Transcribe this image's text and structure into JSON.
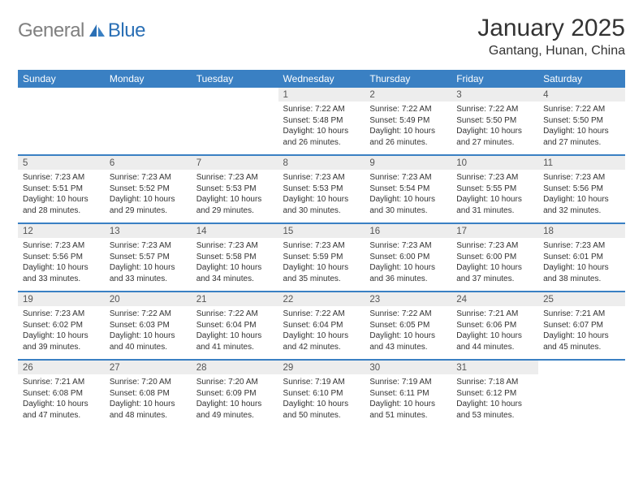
{
  "logo": {
    "text_left": "General",
    "text_right": "Blue"
  },
  "title": "January 2025",
  "location": "Gantang, Hunan, China",
  "colors": {
    "header_bg": "#3a80c3",
    "header_text": "#ffffff",
    "daynum_bg": "#ededed",
    "separator": "#3a80c3",
    "logo_gray": "#808080",
    "logo_blue": "#2a6fb5",
    "body_text": "#333333"
  },
  "day_headers": [
    "Sunday",
    "Monday",
    "Tuesday",
    "Wednesday",
    "Thursday",
    "Friday",
    "Saturday"
  ],
  "weeks": [
    [
      {
        "day": "",
        "lines": []
      },
      {
        "day": "",
        "lines": []
      },
      {
        "day": "",
        "lines": []
      },
      {
        "day": "1",
        "lines": [
          "Sunrise: 7:22 AM",
          "Sunset: 5:48 PM",
          "Daylight: 10 hours and 26 minutes."
        ]
      },
      {
        "day": "2",
        "lines": [
          "Sunrise: 7:22 AM",
          "Sunset: 5:49 PM",
          "Daylight: 10 hours and 26 minutes."
        ]
      },
      {
        "day": "3",
        "lines": [
          "Sunrise: 7:22 AM",
          "Sunset: 5:50 PM",
          "Daylight: 10 hours and 27 minutes."
        ]
      },
      {
        "day": "4",
        "lines": [
          "Sunrise: 7:22 AM",
          "Sunset: 5:50 PM",
          "Daylight: 10 hours and 27 minutes."
        ]
      }
    ],
    [
      {
        "day": "5",
        "lines": [
          "Sunrise: 7:23 AM",
          "Sunset: 5:51 PM",
          "Daylight: 10 hours and 28 minutes."
        ]
      },
      {
        "day": "6",
        "lines": [
          "Sunrise: 7:23 AM",
          "Sunset: 5:52 PM",
          "Daylight: 10 hours and 29 minutes."
        ]
      },
      {
        "day": "7",
        "lines": [
          "Sunrise: 7:23 AM",
          "Sunset: 5:53 PM",
          "Daylight: 10 hours and 29 minutes."
        ]
      },
      {
        "day": "8",
        "lines": [
          "Sunrise: 7:23 AM",
          "Sunset: 5:53 PM",
          "Daylight: 10 hours and 30 minutes."
        ]
      },
      {
        "day": "9",
        "lines": [
          "Sunrise: 7:23 AM",
          "Sunset: 5:54 PM",
          "Daylight: 10 hours and 30 minutes."
        ]
      },
      {
        "day": "10",
        "lines": [
          "Sunrise: 7:23 AM",
          "Sunset: 5:55 PM",
          "Daylight: 10 hours and 31 minutes."
        ]
      },
      {
        "day": "11",
        "lines": [
          "Sunrise: 7:23 AM",
          "Sunset: 5:56 PM",
          "Daylight: 10 hours and 32 minutes."
        ]
      }
    ],
    [
      {
        "day": "12",
        "lines": [
          "Sunrise: 7:23 AM",
          "Sunset: 5:56 PM",
          "Daylight: 10 hours and 33 minutes."
        ]
      },
      {
        "day": "13",
        "lines": [
          "Sunrise: 7:23 AM",
          "Sunset: 5:57 PM",
          "Daylight: 10 hours and 33 minutes."
        ]
      },
      {
        "day": "14",
        "lines": [
          "Sunrise: 7:23 AM",
          "Sunset: 5:58 PM",
          "Daylight: 10 hours and 34 minutes."
        ]
      },
      {
        "day": "15",
        "lines": [
          "Sunrise: 7:23 AM",
          "Sunset: 5:59 PM",
          "Daylight: 10 hours and 35 minutes."
        ]
      },
      {
        "day": "16",
        "lines": [
          "Sunrise: 7:23 AM",
          "Sunset: 6:00 PM",
          "Daylight: 10 hours and 36 minutes."
        ]
      },
      {
        "day": "17",
        "lines": [
          "Sunrise: 7:23 AM",
          "Sunset: 6:00 PM",
          "Daylight: 10 hours and 37 minutes."
        ]
      },
      {
        "day": "18",
        "lines": [
          "Sunrise: 7:23 AM",
          "Sunset: 6:01 PM",
          "Daylight: 10 hours and 38 minutes."
        ]
      }
    ],
    [
      {
        "day": "19",
        "lines": [
          "Sunrise: 7:23 AM",
          "Sunset: 6:02 PM",
          "Daylight: 10 hours and 39 minutes."
        ]
      },
      {
        "day": "20",
        "lines": [
          "Sunrise: 7:22 AM",
          "Sunset: 6:03 PM",
          "Daylight: 10 hours and 40 minutes."
        ]
      },
      {
        "day": "21",
        "lines": [
          "Sunrise: 7:22 AM",
          "Sunset: 6:04 PM",
          "Daylight: 10 hours and 41 minutes."
        ]
      },
      {
        "day": "22",
        "lines": [
          "Sunrise: 7:22 AM",
          "Sunset: 6:04 PM",
          "Daylight: 10 hours and 42 minutes."
        ]
      },
      {
        "day": "23",
        "lines": [
          "Sunrise: 7:22 AM",
          "Sunset: 6:05 PM",
          "Daylight: 10 hours and 43 minutes."
        ]
      },
      {
        "day": "24",
        "lines": [
          "Sunrise: 7:21 AM",
          "Sunset: 6:06 PM",
          "Daylight: 10 hours and 44 minutes."
        ]
      },
      {
        "day": "25",
        "lines": [
          "Sunrise: 7:21 AM",
          "Sunset: 6:07 PM",
          "Daylight: 10 hours and 45 minutes."
        ]
      }
    ],
    [
      {
        "day": "26",
        "lines": [
          "Sunrise: 7:21 AM",
          "Sunset: 6:08 PM",
          "Daylight: 10 hours and 47 minutes."
        ]
      },
      {
        "day": "27",
        "lines": [
          "Sunrise: 7:20 AM",
          "Sunset: 6:08 PM",
          "Daylight: 10 hours and 48 minutes."
        ]
      },
      {
        "day": "28",
        "lines": [
          "Sunrise: 7:20 AM",
          "Sunset: 6:09 PM",
          "Daylight: 10 hours and 49 minutes."
        ]
      },
      {
        "day": "29",
        "lines": [
          "Sunrise: 7:19 AM",
          "Sunset: 6:10 PM",
          "Daylight: 10 hours and 50 minutes."
        ]
      },
      {
        "day": "30",
        "lines": [
          "Sunrise: 7:19 AM",
          "Sunset: 6:11 PM",
          "Daylight: 10 hours and 51 minutes."
        ]
      },
      {
        "day": "31",
        "lines": [
          "Sunrise: 7:18 AM",
          "Sunset: 6:12 PM",
          "Daylight: 10 hours and 53 minutes."
        ]
      },
      {
        "day": "",
        "lines": []
      }
    ]
  ]
}
